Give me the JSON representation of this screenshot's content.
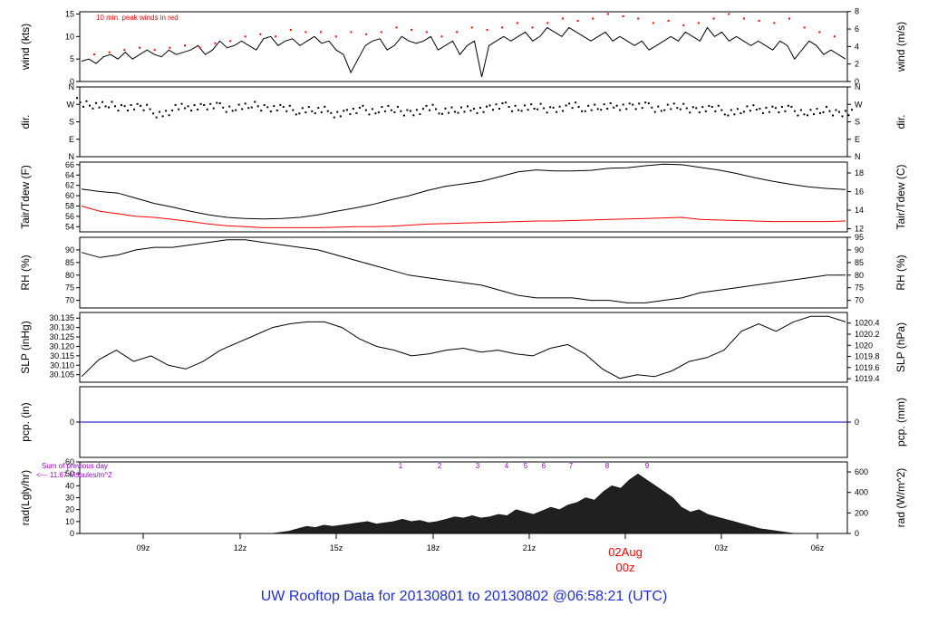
{
  "footer": {
    "prefix": "UW Rooftop Data for",
    "start": "20130801",
    "to": "to",
    "end": "20130802",
    "at": "@",
    "time": "06:58:21",
    "tz": "(UTC)"
  },
  "colors": {
    "ink": "#000000",
    "red": "#ff0000",
    "blue": "#0000cc",
    "purple": "#9900cc",
    "title": "#1f2fd6",
    "fill": "#202020"
  },
  "chart_data": [
    {
      "type": "line",
      "panel": "wind",
      "ylabel": "wind (kts)",
      "ylabel_right": "wind (m/s)",
      "annotation": "10 min. peak winds in red",
      "yticks_left": [
        "0",
        "5",
        "10",
        "15"
      ],
      "yticks_right": [
        "0",
        "2",
        "4",
        "6",
        "8"
      ],
      "ylim": [
        0,
        15.5
      ],
      "series": [
        {
          "values": [
            4.5,
            5,
            4,
            5.5,
            6,
            5,
            6.5,
            5,
            6,
            7,
            6,
            5.5,
            7,
            6,
            6.5,
            7,
            8,
            6,
            7,
            9,
            7.5,
            8,
            9,
            8,
            7,
            9.5,
            10,
            8,
            9,
            9.5,
            8,
            9,
            10,
            8.5,
            9,
            7,
            6,
            2,
            5,
            8,
            9,
            9.5,
            7,
            8,
            10,
            9,
            8.5,
            9,
            10,
            7,
            8,
            9,
            6,
            8,
            9,
            1,
            8,
            9,
            10,
            9,
            10,
            11,
            9,
            10,
            12,
            11,
            10,
            12,
            11,
            10,
            9,
            10,
            11,
            9,
            10,
            9,
            8,
            9,
            7,
            8,
            9,
            10,
            9,
            11,
            10,
            9,
            12,
            10,
            11,
            9,
            10,
            9,
            8,
            9,
            8,
            7,
            9,
            8,
            5,
            7,
            9,
            8,
            6,
            7,
            6,
            5
          ]
        },
        {
          "name": "10 min. peak winds",
          "values": [
            6,
            6.5,
            7,
            7.5,
            7,
            7.5,
            8,
            7.5,
            8.5,
            9,
            10,
            10.5,
            10,
            11.5,
            11,
            11,
            10,
            11,
            10.5,
            11,
            12,
            11.5,
            11,
            10,
            11,
            12,
            11.5,
            12,
            13,
            12,
            13,
            14,
            13.5,
            14,
            15,
            14.5,
            14,
            13,
            13.5,
            12.5,
            13,
            14,
            15,
            14,
            13.5,
            13,
            14,
            12,
            11,
            10
          ]
        }
      ]
    },
    {
      "type": "scatter",
      "panel": "dir",
      "ylabel": "dir.",
      "ylabel_right": "dir.",
      "yticks": [
        "N",
        "W",
        "S",
        "E",
        "N"
      ],
      "series": [
        {
          "values": [
            285,
            270,
            265,
            260,
            250,
            230,
            255,
            265,
            260,
            258,
            262,
            265,
            255,
            245,
            250,
            240,
            230,
            235,
            245,
            250,
            240,
            235,
            250,
            248,
            242,
            252,
            258,
            262,
            258,
            255,
            252,
            262,
            262,
            258,
            268,
            262,
            258,
            262,
            255,
            250,
            245,
            240,
            248,
            252,
            245,
            240,
            235,
            240,
            230
          ]
        }
      ]
    },
    {
      "type": "line",
      "panel": "temperature",
      "ylabel": "Tair/Tdew (F)",
      "ylabel_right": "Tair/Tdew (C)",
      "yticks_left": [
        "54",
        "56",
        "58",
        "60",
        "62",
        "64",
        "66"
      ],
      "yticks_right": [
        "12",
        "14",
        "16",
        "18"
      ],
      "ylim": [
        53,
        66.5
      ],
      "series": [
        {
          "name": "Tair",
          "values": [
            61.3,
            60.8,
            60.5,
            59.5,
            58.5,
            57.8,
            57.0,
            56.3,
            55.8,
            55.6,
            55.5,
            55.6,
            55.8,
            56.3,
            57.0,
            57.6,
            58.3,
            59.2,
            60.0,
            61.0,
            61.8,
            62.3,
            62.8,
            63.7,
            64.6,
            65.0,
            64.8,
            64.8,
            64.9,
            65.3,
            65.4,
            65.8,
            66.1,
            66.0,
            65.5,
            65.0,
            64.3,
            63.5,
            62.8,
            62.2,
            61.7,
            61.4,
            61.2
          ]
        },
        {
          "name": "Tdew",
          "values": [
            58.0,
            57.0,
            56.5,
            56.0,
            55.8,
            55.4,
            55.0,
            54.5,
            54.2,
            54.0,
            53.8,
            53.8,
            53.8,
            53.8,
            53.9,
            54.0,
            54.0,
            54.1,
            54.3,
            54.5,
            54.6,
            54.7,
            54.8,
            54.9,
            55.0,
            55.1,
            55.1,
            55.2,
            55.3,
            55.4,
            55.5,
            55.6,
            55.7,
            55.8,
            55.4,
            55.3,
            55.2,
            55.1,
            55.0,
            55.0,
            55.0,
            55.0,
            55.1
          ]
        }
      ]
    },
    {
      "type": "line",
      "panel": "rh",
      "ylabel": "RH (%)",
      "ylabel_right": "RH (%)",
      "yticks_left": [
        "70",
        "75",
        "80",
        "85",
        "90"
      ],
      "yticks_right": [
        "70",
        "75",
        "80",
        "85",
        "90",
        "95"
      ],
      "ylim": [
        67,
        95
      ],
      "series": [
        {
          "values": [
            89,
            87,
            88,
            90,
            91,
            91,
            92,
            93,
            94,
            94,
            93,
            92,
            91,
            90,
            88,
            86,
            84,
            82,
            80,
            79,
            78,
            77,
            76,
            74,
            72,
            71,
            71,
            71,
            70,
            70,
            69,
            69,
            70,
            71,
            73,
            74,
            75,
            76,
            77,
            78,
            79,
            80,
            80
          ]
        }
      ]
    },
    {
      "type": "line",
      "panel": "slp",
      "ylabel": "SLP (inHg)",
      "ylabel_right": "SLP (hPa)",
      "yticks_left": [
        "30.105",
        "30.110",
        "30.115",
        "30.120",
        "30.125",
        "30.130",
        "30.135"
      ],
      "yticks_right": [
        "1019.4",
        "1019.6",
        "1019.8",
        "1020",
        "1020.2",
        "1020.4"
      ],
      "ylim": [
        30.101,
        30.138
      ],
      "series": [
        {
          "values": [
            30.104,
            30.113,
            30.118,
            30.112,
            30.115,
            30.11,
            30.108,
            30.112,
            30.118,
            30.122,
            30.126,
            30.13,
            30.132,
            30.133,
            30.133,
            30.13,
            30.124,
            30.12,
            30.118,
            30.115,
            30.116,
            30.118,
            30.119,
            30.117,
            30.118,
            30.116,
            30.115,
            30.119,
            30.121,
            30.116,
            30.108,
            30.103,
            30.105,
            30.104,
            30.107,
            30.112,
            30.114,
            30.118,
            30.128,
            30.132,
            30.128,
            30.133,
            30.136,
            30.136,
            30.133
          ]
        }
      ]
    },
    {
      "type": "line",
      "panel": "pcp",
      "ylabel": "pcp. (in)",
      "ylabel_right": "pcp. (mm)",
      "yticks_left": [
        "0"
      ],
      "yticks_right": [
        "0"
      ],
      "series": [
        {
          "values": [
            0,
            0
          ]
        }
      ]
    },
    {
      "type": "area",
      "panel": "rad",
      "ylabel": "rad(Lgly/hr)",
      "ylabel_right": "rad (W/m^2)",
      "yticks_left": [
        "0",
        "10",
        "20",
        "30",
        "40",
        "50",
        "60"
      ],
      "yticks_right": [
        "0",
        "200",
        "400",
        "600"
      ],
      "ylim": [
        0,
        60
      ],
      "annotation_1": "Sum of previous day",
      "annotation_2": "<--- 11.67 MJoules/m^2",
      "hour_labels": [
        "1",
        "2",
        "3",
        "4",
        "5",
        "6",
        "7",
        "8",
        "9"
      ],
      "values": [
        0,
        0,
        0,
        0,
        0,
        0,
        0,
        0,
        0,
        0,
        0,
        0,
        0,
        0,
        0,
        0,
        0,
        0,
        0,
        0,
        0,
        0,
        0,
        1,
        2,
        4,
        6,
        5,
        7,
        6,
        7,
        8,
        9,
        10,
        8,
        9,
        10,
        12,
        10,
        11,
        9,
        10,
        12,
        14,
        13,
        15,
        13,
        14,
        16,
        15,
        20,
        18,
        16,
        19,
        22,
        20,
        24,
        26,
        30,
        28,
        35,
        40,
        38,
        45,
        50,
        45,
        40,
        35,
        30,
        22,
        18,
        20,
        16,
        14,
        12,
        10,
        8,
        6,
        4,
        3,
        2,
        1,
        0,
        0,
        0,
        0,
        0,
        0,
        0
      ]
    }
  ],
  "time_axis": {
    "ticks": [
      "09z",
      "12z",
      "15z",
      "18z",
      "21z",
      "03z",
      "06z"
    ],
    "date_label": "02Aug",
    "date_hour": "00z"
  }
}
